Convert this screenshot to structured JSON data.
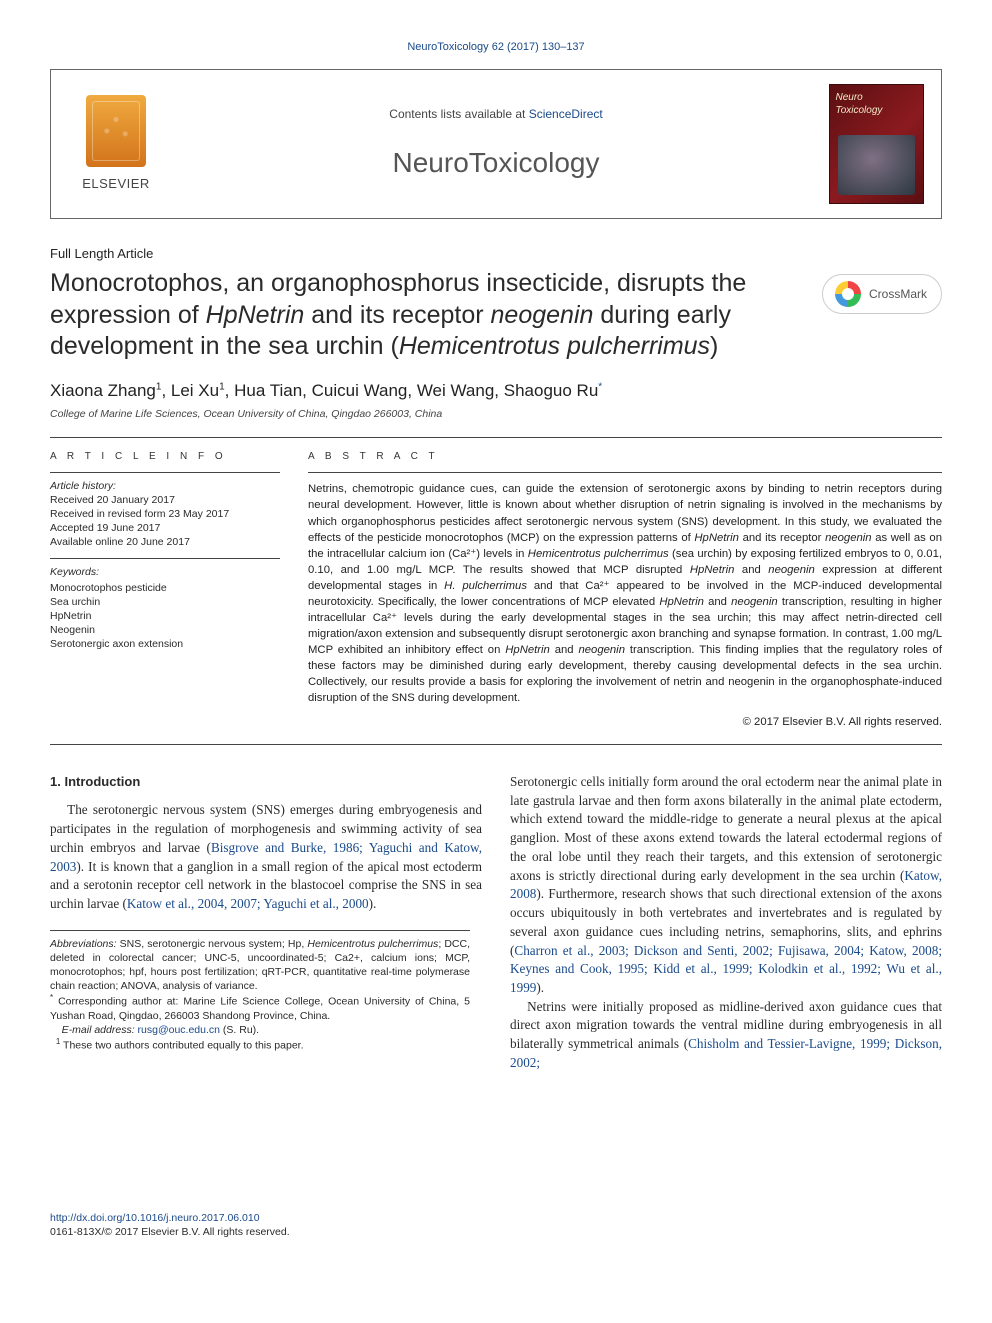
{
  "top_link": "NeuroToxicology 62 (2017) 130–137",
  "header": {
    "elsevier": "ELSEVIER",
    "contents_prefix": "Contents lists available at ",
    "contents_link": "ScienceDirect",
    "journal": "NeuroToxicology",
    "cover_line1": "Neuro",
    "cover_line2": "Toxicology"
  },
  "article_type": "Full Length Article",
  "crossmark_label": "CrossMark",
  "title_parts": {
    "p1": "Monocrotophos, an organophosphorus insecticide, disrupts the expression of ",
    "i1": "HpNetrin",
    "p2": " and its receptor ",
    "i2": "neogenin",
    "p3": " during early development in the sea urchin (",
    "i3": "Hemicentrotus pulcherrimus",
    "p4": ")"
  },
  "authors_html": "Xiaona Zhang¹, Lei Xu¹, Hua Tian, Cuicui Wang, Wei Wang, Shaoguo Ru*",
  "authors": {
    "a1": "Xiaona Zhang",
    "s1": "1",
    "a2": "Lei Xu",
    "s2": "1",
    "a3": "Hua Tian",
    "a4": "Cuicui Wang",
    "a5": "Wei Wang",
    "a6": "Shaoguo Ru",
    "s6": "*"
  },
  "affiliation": "College of Marine Life Sciences, Ocean University of China, Qingdao 266003, China",
  "info": {
    "head": "A R T I C L E   I N F O",
    "history_label": "Article history:",
    "received": "Received 20 January 2017",
    "revised": "Received in revised form 23 May 2017",
    "accepted": "Accepted 19 June 2017",
    "online": "Available online 20 June 2017",
    "keywords_label": "Keywords:",
    "kw1": "Monocrotophos pesticide",
    "kw2": "Sea urchin",
    "kw3": "HpNetrin",
    "kw4": "Neogenin",
    "kw5": "Serotonergic axon extension"
  },
  "abstract": {
    "head": "A B S T R A C T",
    "body_p1a": "Netrins, chemotropic guidance cues, can guide the extension of serotonergic axons by binding to netrin receptors during neural development. However, little is known about whether disruption of netrin signaling is involved in the mechanisms by which organophosphorus pesticides affect serotonergic nervous system (SNS) development. In this study, we evaluated the effects of the pesticide monocrotophos (MCP) on the expression patterns of ",
    "body_i1": "HpNetrin",
    "body_p1b": " and its receptor ",
    "body_i2": "neogenin",
    "body_p1c": " as well as on the intracellular calcium ion (Ca²⁺) levels in ",
    "body_i3": "Hemicentrotus pulcherrimus",
    "body_p1d": " (sea urchin) by exposing fertilized embryos to 0, 0.01, 0.10, and 1.00 mg/L MCP. The results showed that MCP disrupted ",
    "body_i4": "HpNetrin",
    "body_p1e": " and ",
    "body_i5": "neogenin",
    "body_p1f": " expression at different developmental stages in ",
    "body_i6": "H. pulcherrimus",
    "body_p1g": " and that Ca²⁺ appeared to be involved in the MCP-induced developmental neurotoxicity. Specifically, the lower concentrations of MCP elevated ",
    "body_i7": "HpNetrin",
    "body_p1h": " and ",
    "body_i8": "neogenin",
    "body_p1i": " transcription, resulting in higher intracellular Ca²⁺ levels during the early developmental stages in the sea urchin; this may affect netrin-directed cell migration/axon extension and subsequently disrupt serotonergic axon branching and synapse formation. In contrast, 1.00 mg/L MCP exhibited an inhibitory effect on ",
    "body_i9": "HpNetrin",
    "body_p1j": " and ",
    "body_i10": "neogenin",
    "body_p1k": " transcription. This finding implies that the regulatory roles of these factors may be diminished during early development, thereby causing developmental defects in the sea urchin. Collectively, our results provide a basis for exploring the involvement of netrin and neogenin in the organophosphate-induced disruption of the SNS during development.",
    "copyright": "© 2017 Elsevier B.V. All rights reserved."
  },
  "intro": {
    "head": "1. Introduction",
    "p1a": "The serotonergic nervous system (SNS) emerges during embryogenesis and participates in the regulation of morphogenesis and swimming activity of sea urchin embryos and larvae (",
    "c1": "Bisgrove and Burke, 1986; Yaguchi and Katow, 2003",
    "p1b": "). It is known that a ganglion in a small region of the apical most ectoderm and a serotonin receptor cell network in the blastocoel comprise the SNS in sea urchin larvae (",
    "c2": "Katow et al., 2004, 2007; Yaguchi et al., 2000",
    "p1c": ").",
    "p2a": "Serotonergic cells initially form around the oral ectoderm near the animal plate in late gastrula larvae and then form axons bilaterally in the animal plate ectoderm, which extend toward the middle-ridge to generate a neural plexus at the apical ganglion. Most of these axons extend towards the lateral ectodermal regions of the oral lobe until they reach their targets, and this extension of serotonergic axons is strictly directional during early development in the sea urchin (",
    "c3": "Katow, 2008",
    "p2b": "). Furthermore, research shows that such directional extension of the axons occurs ubiquitously in both vertebrates and invertebrates and is regulated by several axon guidance cues including netrins, semaphorins, slits, and ephrins (",
    "c4": "Charron et al., 2003; Dickson and Senti, 2002; Fujisawa, 2004; Katow, 2008; Keynes and Cook, 1995; Kidd et al., 1999; Kolodkin et al., 1992; Wu et al., 1999",
    "p2c": ").",
    "p3a": "Netrins were initially proposed as midline-derived axon guidance cues that direct axon migration towards the ventral midline during embryogenesis in all bilaterally symmetrical animals (",
    "c5": "Chisholm and Tessier-Lavigne, 1999; Dickson, 2002;",
    "p3b": ""
  },
  "footnotes": {
    "abbr_label": "Abbreviations:",
    "abbr_body": " SNS, serotonergic nervous system; Hp, ",
    "abbr_i1": "Hemicentrotus pulcherrimus",
    "abbr_body2": "; DCC, deleted in colorectal cancer; UNC-5, uncoordinated-5; Ca2+, calcium ions; MCP, monocrotophos; hpf, hours post fertilization; qRT-PCR, quantitative real-time polymerase chain reaction; ANOVA, analysis of variance.",
    "corr_mark": "*",
    "corr": " Corresponding author at: Marine Life Science College, Ocean University of China, 5 Yushan Road, Qingdao, 266003 Shandong Province, China.",
    "email_label": "E-mail address: ",
    "email": "rusg@ouc.edu.cn",
    "email_tail": " (S. Ru).",
    "eq_mark": "1",
    "eq": " These two authors contributed equally to this paper."
  },
  "bottom": {
    "doi": "http://dx.doi.org/10.1016/j.neuro.2017.06.010",
    "issn": "0161-813X/© 2017 Elsevier B.V. All rights reserved."
  },
  "colors": {
    "link": "#1a4a8a",
    "text": "#2a2a2a",
    "rule": "#444444"
  }
}
